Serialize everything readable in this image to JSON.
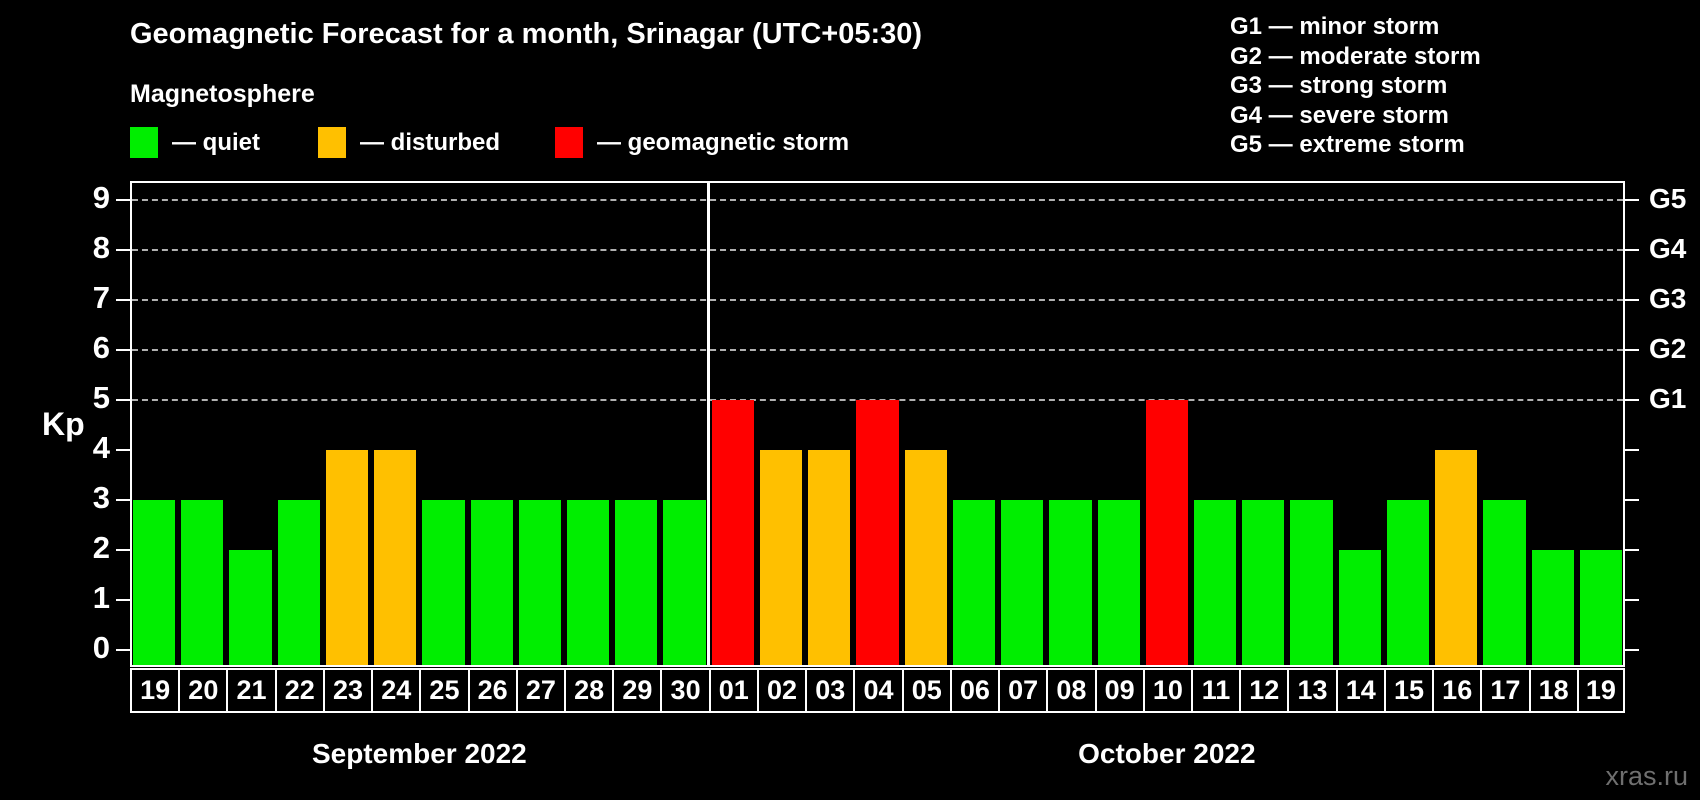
{
  "title": "Geomagnetic Forecast for a month, Srinagar (UTC+05:30)",
  "subtitle": "Magnetosphere",
  "legend": {
    "items": [
      {
        "key": "quiet",
        "label": "— quiet",
        "color": "#00ee00"
      },
      {
        "key": "disturbed",
        "label": "— disturbed",
        "color": "#ffc000"
      },
      {
        "key": "storm",
        "label": "— geomagnetic storm",
        "color": "#ff0000"
      }
    ]
  },
  "storm_legend": [
    "G1 — minor storm",
    "G2 — moderate storm",
    "G3 — strong storm",
    "G4 — severe storm",
    "G5 — extreme storm"
  ],
  "watermark": "xras.ru",
  "chart_data": {
    "type": "bar",
    "title": "Geomagnetic Forecast for a month, Srinagar (UTC+05:30)",
    "ylabel": "Kp",
    "ylim": [
      0,
      9
    ],
    "yticks": [
      0,
      1,
      2,
      3,
      4,
      5,
      6,
      7,
      8,
      9
    ],
    "gridlines_at": [
      5,
      6,
      7,
      8,
      9
    ],
    "grid": "dashed horizontal at G-storm levels",
    "right_axis": [
      {
        "kp": 5,
        "label": "G1"
      },
      {
        "kp": 6,
        "label": "G2"
      },
      {
        "kp": 7,
        "label": "G3"
      },
      {
        "kp": 8,
        "label": "G4"
      },
      {
        "kp": 9,
        "label": "G5"
      }
    ],
    "colors": {
      "quiet": "#00ee00",
      "disturbed": "#ffc000",
      "storm": "#ff0000"
    },
    "months": [
      {
        "label": "September 2022",
        "days": 12
      },
      {
        "label": "October 2022",
        "days": 19
      }
    ],
    "days": [
      {
        "day": "19",
        "kp": 3,
        "status": "quiet"
      },
      {
        "day": "20",
        "kp": 3,
        "status": "quiet"
      },
      {
        "day": "21",
        "kp": 2,
        "status": "quiet"
      },
      {
        "day": "22",
        "kp": 3,
        "status": "quiet"
      },
      {
        "day": "23",
        "kp": 4,
        "status": "disturbed"
      },
      {
        "day": "24",
        "kp": 4,
        "status": "disturbed"
      },
      {
        "day": "25",
        "kp": 3,
        "status": "quiet"
      },
      {
        "day": "26",
        "kp": 3,
        "status": "quiet"
      },
      {
        "day": "27",
        "kp": 3,
        "status": "quiet"
      },
      {
        "day": "28",
        "kp": 3,
        "status": "quiet"
      },
      {
        "day": "29",
        "kp": 3,
        "status": "quiet"
      },
      {
        "day": "30",
        "kp": 3,
        "status": "quiet"
      },
      {
        "day": "01",
        "kp": 5,
        "status": "storm"
      },
      {
        "day": "02",
        "kp": 4,
        "status": "disturbed"
      },
      {
        "day": "03",
        "kp": 4,
        "status": "disturbed"
      },
      {
        "day": "04",
        "kp": 5,
        "status": "storm"
      },
      {
        "day": "05",
        "kp": 4,
        "status": "disturbed"
      },
      {
        "day": "06",
        "kp": 3,
        "status": "quiet"
      },
      {
        "day": "07",
        "kp": 3,
        "status": "quiet"
      },
      {
        "day": "08",
        "kp": 3,
        "status": "quiet"
      },
      {
        "day": "09",
        "kp": 3,
        "status": "quiet"
      },
      {
        "day": "10",
        "kp": 5,
        "status": "storm"
      },
      {
        "day": "11",
        "kp": 3,
        "status": "quiet"
      },
      {
        "day": "12",
        "kp": 3,
        "status": "quiet"
      },
      {
        "day": "13",
        "kp": 3,
        "status": "quiet"
      },
      {
        "day": "14",
        "kp": 2,
        "status": "quiet"
      },
      {
        "day": "15",
        "kp": 3,
        "status": "quiet"
      },
      {
        "day": "16",
        "kp": 4,
        "status": "disturbed"
      },
      {
        "day": "17",
        "kp": 3,
        "status": "quiet"
      },
      {
        "day": "18",
        "kp": 2,
        "status": "quiet"
      },
      {
        "day": "19",
        "kp": 2,
        "status": "quiet"
      }
    ]
  }
}
